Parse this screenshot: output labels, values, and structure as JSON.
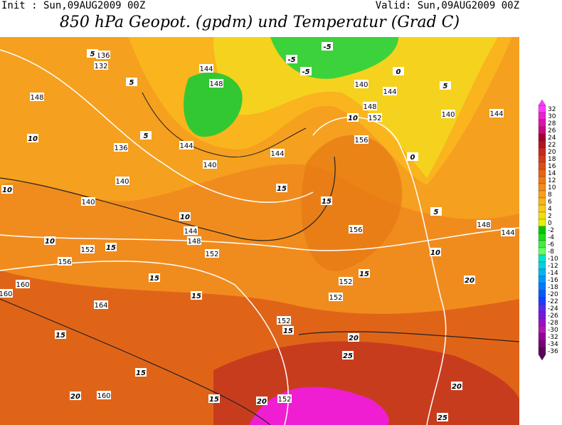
{
  "header": {
    "init": "Init : Sun,09AUG2009  00Z",
    "valid": "Valid: Sun,09AUG2009  00Z",
    "title": "850 hPa Geopot. (gpdm) und Temperatur (Grad C)"
  },
  "colorbar": {
    "labels": [
      32,
      30,
      28,
      26,
      24,
      22,
      20,
      18,
      16,
      14,
      12,
      10,
      8,
      6,
      4,
      2,
      0,
      -2,
      -4,
      -6,
      -8,
      -10,
      -12,
      -14,
      -16,
      -18,
      -20,
      -22,
      -24,
      -26,
      -28,
      -30,
      -32,
      -34,
      -36
    ],
    "colors": [
      "#ff3cff",
      "#f01ed2",
      "#dc14aa",
      "#c80a82",
      "#a0002d",
      "#b4141e",
      "#c8281e",
      "#d23c1e",
      "#dc5014",
      "#e66414",
      "#f07814",
      "#f58c14",
      "#faa01e",
      "#fab414",
      "#fac81e",
      "#f0e100",
      "#e6f000",
      "#00c800",
      "#1edc1e",
      "#3cf03c",
      "#64ff64",
      "#00e6c8",
      "#00d2e6",
      "#00b4f0",
      "#0096ff",
      "#0078ff",
      "#005aff",
      "#1e3cff",
      "#5a28f0",
      "#7814dc",
      "#9614c8",
      "#b414b4",
      "#960096",
      "#780078",
      "#5a005a"
    ]
  },
  "geopotential_labels": [
    136,
    132,
    148,
    144,
    148,
    136,
    140,
    140,
    144,
    140,
    144,
    140,
    144,
    148,
    152,
    156,
    140,
    144,
    156,
    144,
    148,
    152,
    152,
    156,
    160,
    164,
    160,
    152,
    152,
    152,
    160,
    152,
    148,
    144
  ],
  "temperature_labels": [
    5,
    5,
    5,
    5,
    10,
    10,
    10,
    10,
    15,
    15,
    15,
    15,
    15,
    15,
    15,
    15,
    10,
    20,
    20,
    25,
    20,
    15,
    20,
    25,
    20,
    10,
    5,
    15,
    -5,
    -5,
    0,
    0,
    -5
  ]
}
